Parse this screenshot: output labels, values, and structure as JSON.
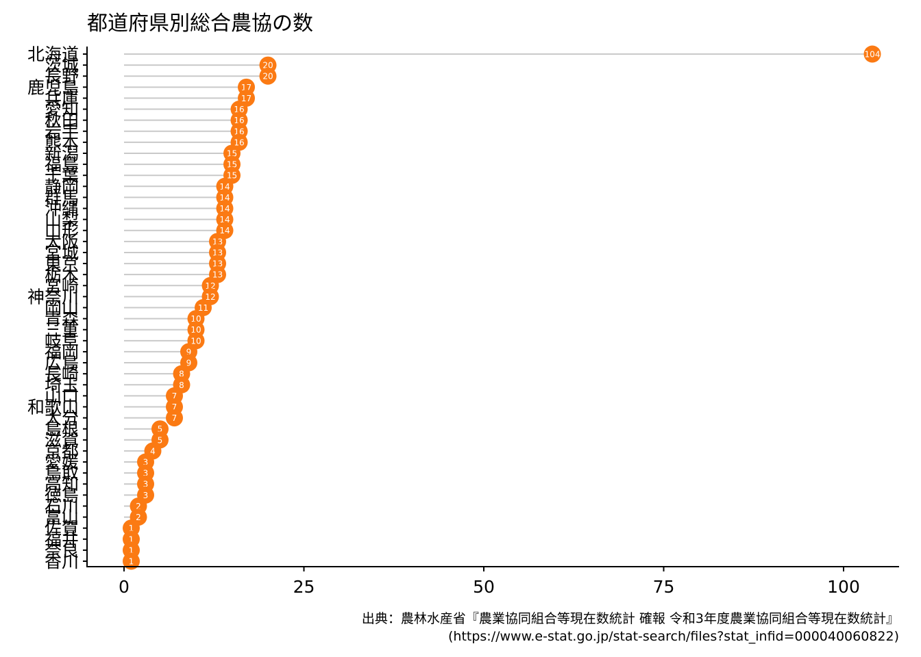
{
  "chart_data": {
    "type": "lollipop",
    "title": "都道府県別総合農協の数",
    "xlabel": "",
    "ylabel": "",
    "xlim": [
      -5,
      108
    ],
    "xticks": [
      0,
      25,
      50,
      75,
      100
    ],
    "point_color": "#FB7A13",
    "stem_color": "#C9C9C9",
    "categories": [
      "北海道",
      "茨城",
      "長野",
      "鹿児島",
      "兵庫",
      "愛知",
      "秋田",
      "岩手",
      "熊本",
      "新潟",
      "福島",
      "千葉",
      "静岡",
      "群馬",
      "沖縄",
      "山梨",
      "山形",
      "大阪",
      "宮城",
      "東京",
      "栃木",
      "宮崎",
      "神奈川",
      "岡山",
      "青森",
      "三重",
      "岐阜",
      "福岡",
      "広島",
      "長崎",
      "埼玉",
      "山口",
      "和歌山",
      "大分",
      "島根",
      "滋賀",
      "京都",
      "愛媛",
      "鳥取",
      "高知",
      "徳島",
      "石川",
      "富山",
      "佐賀",
      "福井",
      "奈良",
      "香川"
    ],
    "values": [
      104,
      20,
      20,
      17,
      17,
      16,
      16,
      16,
      16,
      15,
      15,
      15,
      14,
      14,
      14,
      14,
      14,
      13,
      13,
      13,
      13,
      12,
      12,
      11,
      10,
      10,
      10,
      9,
      9,
      8,
      8,
      7,
      7,
      7,
      5,
      5,
      4,
      3,
      3,
      3,
      3,
      2,
      2,
      1,
      1,
      1,
      1
    ],
    "caption": [
      "出典：農林水産省『農業協同組合等現在数統計 確報 令和3年度農業協同組合等現在数統計』",
      "(https://www.e-stat.go.jp/stat-search/files?stat_infid=000040060822)"
    ]
  }
}
